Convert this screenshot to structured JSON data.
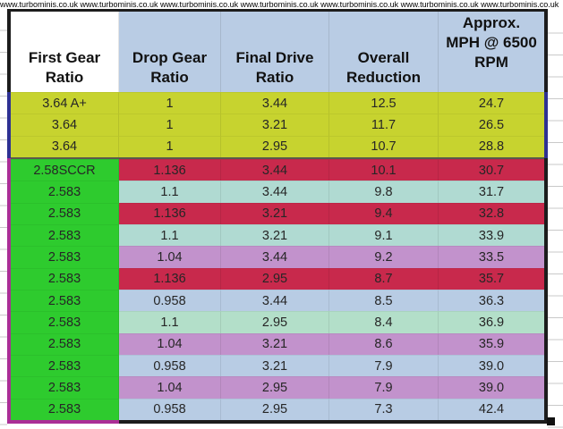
{
  "watermark": {
    "text": "www.turbominis.co.uk",
    "display": "www.turbominis.co.uk www.turbominis.co.uk www.turbominis.co.uk www.turbominis.co.uk www.turbominis.co.uk www.turbominis.co.uk www.turbominis.co.uk"
  },
  "colors": {
    "black_border": "#1c1c1c",
    "navy_border": "#2e3192",
    "magenta_border": "#aa2e96",
    "white": "#ffffff",
    "header_blue": "#b9cce4",
    "yellow": "#c7d32f",
    "green": "#2ecb2e",
    "crimson": "#c8294c",
    "teal": "#b0dad2",
    "mint": "#b3dfc9",
    "purple": "#c292cc",
    "blue": "#b8cce4",
    "text": "#262626"
  },
  "table": {
    "columns": [
      {
        "label": "First Gear\nRatio",
        "fill": "white"
      },
      {
        "label": "Drop Gear\nRatio",
        "fill": "header_blue"
      },
      {
        "label": "Final Drive\nRatio",
        "fill": "header_blue"
      },
      {
        "label": "Overall\nReduction",
        "fill": "header_blue"
      },
      {
        "label": "Approx.\nMPH @ 6500\nRPM",
        "fill": "header_blue"
      }
    ],
    "rows": [
      {
        "cells": [
          "3.64 A+",
          "1",
          "3.44",
          "12.5",
          "24.7"
        ],
        "first_color": "yellow",
        "color": "yellow",
        "divider": false
      },
      {
        "cells": [
          "3.64",
          "1",
          "3.21",
          "11.7",
          "26.5"
        ],
        "first_color": "yellow",
        "color": "yellow",
        "divider": false
      },
      {
        "cells": [
          "3.64",
          "1",
          "2.95",
          "10.7",
          "28.8"
        ],
        "first_color": "yellow",
        "color": "yellow",
        "divider": false
      },
      {
        "cells": [
          "2.58SCCR",
          "1.136",
          "3.44",
          "10.1",
          "30.7"
        ],
        "first_color": "green",
        "color": "crimson",
        "divider": true
      },
      {
        "cells": [
          "2.583",
          "1.1",
          "3.44",
          "9.8",
          "31.7"
        ],
        "first_color": "green",
        "color": "teal",
        "divider": false
      },
      {
        "cells": [
          "2.583",
          "1.136",
          "3.21",
          "9.4",
          "32.8"
        ],
        "first_color": "green",
        "color": "crimson",
        "divider": false
      },
      {
        "cells": [
          "2.583",
          "1.1",
          "3.21",
          "9.1",
          "33.9"
        ],
        "first_color": "green",
        "color": "teal",
        "divider": false
      },
      {
        "cells": [
          "2.583",
          "1.04",
          "3.44",
          "9.2",
          "33.5"
        ],
        "first_color": "green",
        "color": "purple",
        "divider": false
      },
      {
        "cells": [
          "2.583",
          "1.136",
          "2.95",
          "8.7",
          "35.7"
        ],
        "first_color": "green",
        "color": "crimson",
        "divider": false
      },
      {
        "cells": [
          "2.583",
          "0.958",
          "3.44",
          "8.5",
          "36.3"
        ],
        "first_color": "green",
        "color": "blue",
        "divider": false
      },
      {
        "cells": [
          "2.583",
          "1.1",
          "2.95",
          "8.4",
          "36.9"
        ],
        "first_color": "green",
        "color": "mint",
        "divider": false
      },
      {
        "cells": [
          "2.583",
          "1.04",
          "3.21",
          "8.6",
          "35.9"
        ],
        "first_color": "green",
        "color": "purple",
        "divider": false
      },
      {
        "cells": [
          "2.583",
          "0.958",
          "3.21",
          "7.9",
          "39.0"
        ],
        "first_color": "green",
        "color": "blue",
        "divider": false
      },
      {
        "cells": [
          "2.583",
          "1.04",
          "2.95",
          "7.9",
          "39.0"
        ],
        "first_color": "green",
        "color": "purple",
        "divider": false
      },
      {
        "cells": [
          "2.583",
          "0.958",
          "2.95",
          "7.3",
          "42.4"
        ],
        "first_color": "green",
        "color": "blue",
        "divider": false
      }
    ]
  }
}
